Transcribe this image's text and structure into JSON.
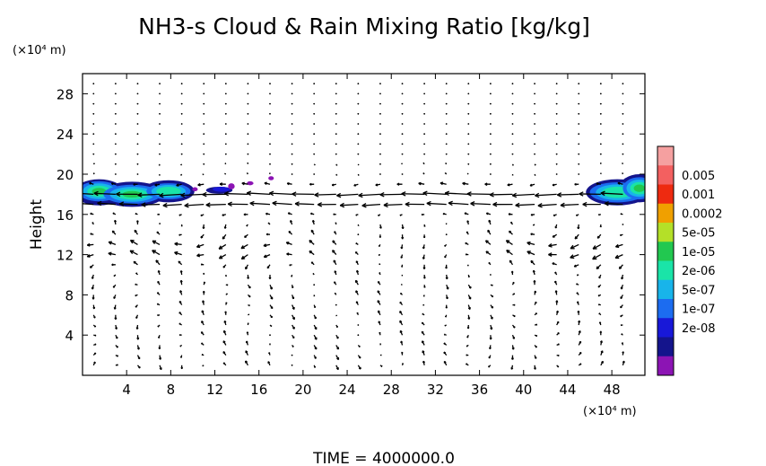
{
  "chart_data": {
    "type": "heatmap",
    "title": "NH3-s Cloud & Rain Mixing Ratio [kg/kg]",
    "ylabel": "Height",
    "xlabel": "",
    "x_unit": "(×10⁴ m)",
    "y_unit": "(×10⁴ m)",
    "xlim": [
      0,
      51
    ],
    "ylim": [
      0,
      30
    ],
    "x_ticks": [
      4,
      8,
      12,
      16,
      20,
      24,
      28,
      32,
      36,
      40,
      44,
      48
    ],
    "y_ticks": [
      4,
      8,
      12,
      16,
      20,
      24,
      28
    ],
    "grid": false,
    "legend": "right",
    "colorbar": {
      "labels": [
        "0.005",
        "0.001",
        "0.0002",
        "5e-05",
        "1e-05",
        "2e-06",
        "5e-07",
        "1e-07",
        "2e-08"
      ],
      "colors": [
        "#f5a0a0",
        "#f36060",
        "#ee2a10",
        "#f0a000",
        "#b4e028",
        "#22c850",
        "#1ae4a8",
        "#18b4ea",
        "#1c6cf0",
        "#1818d8",
        "#14148c",
        "#8c14b4"
      ]
    },
    "cloud_regions": [
      {
        "x": [
          0,
          10
        ],
        "y": [
          17,
          20
        ],
        "max_level": "1e-05"
      },
      {
        "x": [
          11,
          14
        ],
        "y": [
          17.9,
          19
        ],
        "max_level": "1e-07"
      },
      {
        "x": [
          46,
          51
        ],
        "y": [
          17,
          20
        ],
        "max_level": "1e-05"
      }
    ],
    "wind_field": {
      "description": "vector arrows; strongest westward flow near 17-18.5 (x10^4 m)"
    },
    "time_label": "TIME  =  4000000.0"
  }
}
